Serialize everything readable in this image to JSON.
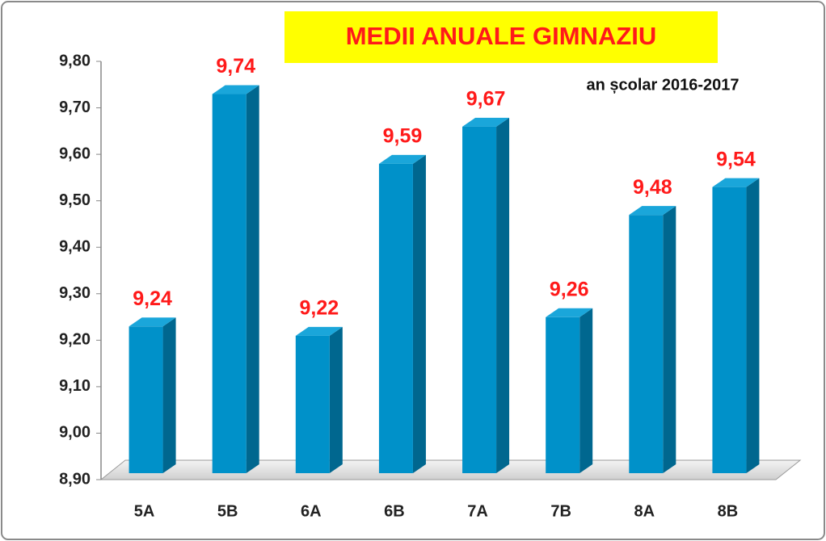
{
  "chart_data": {
    "type": "bar3d",
    "title": "MEDII ANUALE GIMNAZIU",
    "subtitle": "an școlar 2016-2017",
    "categories": [
      "5A",
      "5B",
      "6A",
      "6B",
      "7A",
      "7B",
      "8A",
      "8B"
    ],
    "values": [
      9.24,
      9.74,
      9.22,
      9.59,
      9.67,
      9.26,
      9.48,
      9.54
    ],
    "value_labels": [
      "9,24",
      "9,74",
      "9,22",
      "9,59",
      "9,67",
      "9,26",
      "9,48",
      "9,54"
    ],
    "color": "#0091c9",
    "ylim": [
      8.9,
      9.8
    ],
    "yticks": [
      {
        "value": 8.9,
        "label": "8,90"
      },
      {
        "value": 9.0,
        "label": "9,00"
      },
      {
        "value": 9.1,
        "label": "9,10"
      },
      {
        "value": 9.2,
        "label": "9,20"
      },
      {
        "value": 9.3,
        "label": "9,30"
      },
      {
        "value": 9.4,
        "label": "9,40"
      },
      {
        "value": 9.5,
        "label": "9,50"
      },
      {
        "value": 9.6,
        "label": "9,60"
      },
      {
        "value": 9.7,
        "label": "9,70"
      },
      {
        "value": 9.8,
        "label": "9,80"
      }
    ],
    "grid": false
  }
}
